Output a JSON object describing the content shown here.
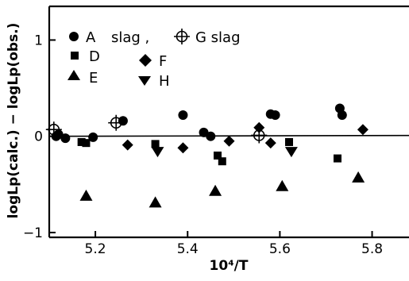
{
  "chart_data": {
    "type": "scatter",
    "xlabel": "10⁴/T",
    "ylabel": "logLp(calc.) − logLp(obs.)",
    "xlim": [
      5.1,
      5.88
    ],
    "ylim": [
      -1.05,
      1.35
    ],
    "x_ticks": [
      5.2,
      5.4,
      5.6,
      5.8
    ],
    "y_ticks": [
      1,
      0,
      -1
    ],
    "x_tick_labels": [
      "5.2",
      "5.4",
      "5.6",
      "5.8"
    ],
    "y_tick_labels": [
      "1",
      "0",
      "−1"
    ],
    "zero_line": true,
    "grid": false,
    "legend_position": "top-left",
    "series": [
      {
        "name": "A slag",
        "marker": "filled-circle",
        "x": [
          5.115,
          5.12,
          5.135,
          5.195,
          5.26,
          5.39,
          5.435,
          5.45,
          5.58,
          5.59,
          5.73,
          5.735
        ],
        "y": [
          0.0,
          0.02,
          -0.02,
          -0.01,
          0.16,
          0.22,
          0.04,
          0.0,
          0.23,
          0.22,
          0.29,
          0.22
        ]
      },
      {
        "name": "D",
        "marker": "filled-square",
        "x": [
          5.17,
          5.18,
          5.33,
          5.465,
          5.475,
          5.62,
          5.725
        ],
        "y": [
          -0.06,
          -0.07,
          -0.08,
          -0.2,
          -0.26,
          -0.06,
          -0.23
        ]
      },
      {
        "name": "E",
        "marker": "filled-triangle-up",
        "x": [
          5.18,
          5.33,
          5.46,
          5.605,
          5.77
        ],
        "y": [
          -0.62,
          -0.69,
          -0.57,
          -0.52,
          -0.43
        ]
      },
      {
        "name": "F",
        "marker": "filled-diamond",
        "x": [
          5.27,
          5.39,
          5.49,
          5.555,
          5.58,
          5.78
        ],
        "y": [
          -0.09,
          -0.12,
          -0.05,
          0.09,
          -0.07,
          0.07
        ]
      },
      {
        "name": "H",
        "marker": "filled-triangle-down",
        "x": [
          5.335,
          5.625
        ],
        "y": [
          -0.16,
          -0.16
        ]
      },
      {
        "name": "G slag",
        "marker": "crossed-circle",
        "x": [
          5.11,
          5.245,
          5.555
        ],
        "y": [
          0.07,
          0.14,
          0.01
        ]
      }
    ],
    "legend": {
      "row1_prefix": "A",
      "row1_a_label": "slag ,",
      "row1_g_label": "G slag",
      "d_label": "D",
      "f_label": "F",
      "e_label": "E",
      "h_label": "H"
    }
  }
}
